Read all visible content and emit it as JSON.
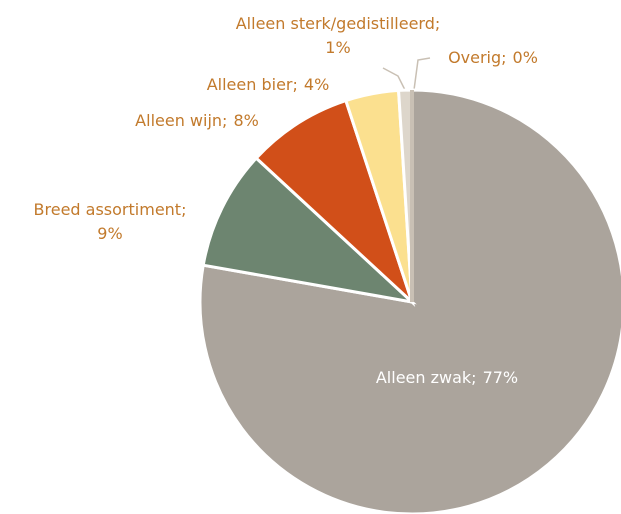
{
  "chart_data": {
    "type": "pie",
    "categories": [
      "Alleen zwak;",
      "Breed assortiment;",
      "Alleen wijn;",
      "Alleen bier;",
      "Alleen sterk/gedistilleerd;",
      "Overig;"
    ],
    "values": [
      77,
      9,
      8,
      4,
      1,
      0
    ],
    "value_labels": [
      "77%",
      "9%",
      "8%",
      "4%",
      "1%",
      "0%"
    ],
    "colors": [
      "#aba49c",
      "#6d8570",
      "#d14f19",
      "#fbe08f",
      "#ddd6cb",
      "#c9c0b4"
    ]
  }
}
